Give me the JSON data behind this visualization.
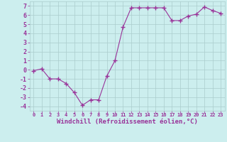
{
  "x": [
    0,
    1,
    2,
    3,
    4,
    5,
    6,
    7,
    8,
    9,
    10,
    11,
    12,
    13,
    14,
    15,
    16,
    17,
    18,
    19,
    20,
    21,
    22,
    23
  ],
  "y": [
    -0.1,
    0.1,
    -1.0,
    -1.0,
    -1.5,
    -2.5,
    -3.9,
    -3.3,
    -3.3,
    -0.7,
    1.0,
    4.7,
    6.8,
    6.8,
    6.8,
    6.8,
    6.8,
    5.4,
    5.4,
    5.9,
    6.1,
    6.9,
    6.5,
    6.2
  ],
  "xlabel": "Windchill (Refroidissement éolien,°C)",
  "xlim": [
    -0.5,
    23.5
  ],
  "ylim": [
    -4.5,
    7.5
  ],
  "yticks": [
    -4,
    -3,
    -2,
    -1,
    0,
    1,
    2,
    3,
    4,
    5,
    6,
    7
  ],
  "xticks": [
    0,
    1,
    2,
    3,
    4,
    5,
    6,
    7,
    8,
    9,
    10,
    11,
    12,
    13,
    14,
    15,
    16,
    17,
    18,
    19,
    20,
    21,
    22,
    23
  ],
  "line_color": "#993399",
  "marker": "+",
  "markersize": 4,
  "linewidth": 0.8,
  "bg_color": "#cceeee",
  "grid_color": "#aacccc",
  "axis_label_color": "#993399",
  "tick_label_color": "#993399",
  "xlabel_fontsize": 6.5,
  "tick_fontsize_x": 5,
  "tick_fontsize_y": 6
}
